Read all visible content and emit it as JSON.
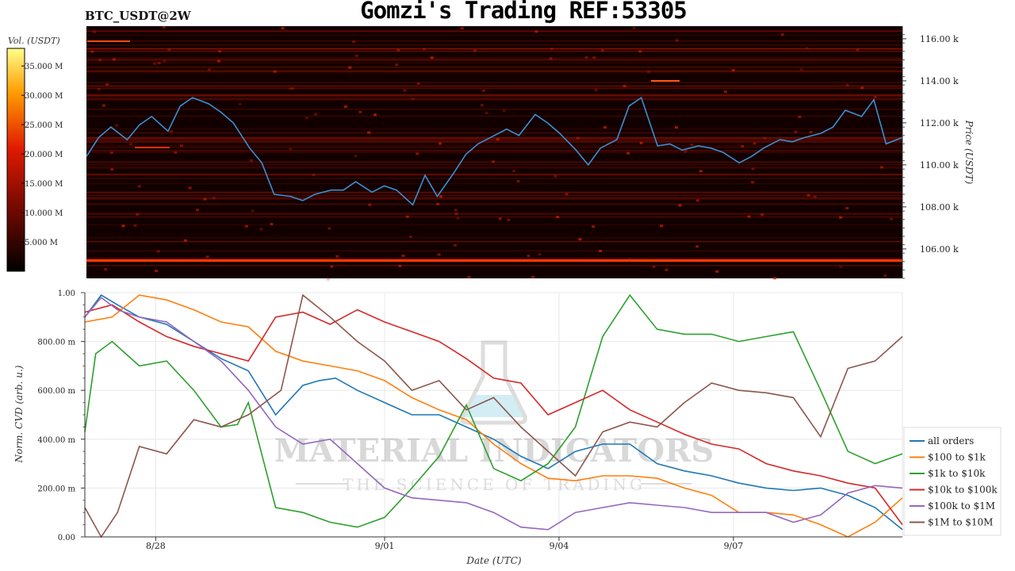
{
  "header": {
    "title": "Gomzi's Trading REF:53305",
    "pair": "BTC_USDT@2W"
  },
  "watermark": {
    "line1": "MATERIAL INDICATORS",
    "line2": "THE SCIENCE OF TRADING"
  },
  "chart_data": [
    {
      "type": "heatmap",
      "description_source": "order book liquidity heatmap with price line",
      "colorbar": {
        "label": "Vol. (USDT)",
        "ticks": [
          "5.000 M",
          "10.000 M",
          "15.000 M",
          "20.000 M",
          "25.000 M",
          "30.000 M",
          "35.000 M"
        ],
        "tick_values": [
          5,
          10,
          15,
          20,
          25,
          30,
          35
        ],
        "range": [
          0,
          38
        ]
      },
      "ylabel": "Price (USDT)",
      "ylim": [
        104.6,
        116.6
      ],
      "yticks": [
        "106.00 k",
        "108.00 k",
        "110.00 k",
        "112.00 k",
        "114.00 k",
        "116.00 k"
      ],
      "ytick_values": [
        106,
        108,
        110,
        112,
        114,
        116
      ],
      "price_series": {
        "color": "#3b8fd0",
        "x": [
          0,
          0.3,
          0.6,
          1,
          1.3,
          1.6,
          2,
          2.3,
          2.6,
          3,
          3.3,
          3.6,
          4,
          4.3,
          4.6,
          5,
          5.3,
          5.6,
          6,
          6.3,
          6.6,
          7,
          7.3,
          7.6,
          8,
          8.3,
          8.6,
          9,
          9.3,
          9.6,
          10,
          10.3,
          10.6,
          11,
          11.3,
          11.6,
          12,
          12.3,
          12.6,
          13,
          13.3,
          13.6,
          14,
          14.3,
          14.6,
          15
        ],
        "y": [
          110.4,
          111.3,
          111.8,
          111.2,
          111.9,
          112.3,
          111.6,
          112.8,
          113.2,
          112.9,
          112.5,
          112.0,
          110.8,
          110.1,
          108.6,
          108.5,
          108.3,
          108.6,
          108.8,
          108.8,
          109.2,
          108.7,
          109.0,
          108.8,
          108.1,
          109.5,
          108.5,
          109.6,
          110.5,
          111.0,
          111.4,
          111.7,
          111.4,
          112.4,
          112.0,
          111.5,
          110.7,
          110.0,
          110.8,
          111.2,
          112.8,
          113.2,
          110.9,
          111.0,
          110.7,
          110.9
        ]
      },
      "price_series_note": "",
      "price_series_extra": {
        "x": [
          15.3,
          15.6,
          16,
          16.3,
          16.6,
          17,
          17.3,
          17.6,
          18,
          18.3,
          18.6,
          19,
          19.3,
          19.6,
          20
        ],
        "y": [
          110.8,
          110.6,
          110.1,
          110.4,
          110.8,
          111.2,
          111.1,
          111.3,
          111.5,
          111.8,
          112.6,
          112.3,
          113.1,
          111.0,
          111.3
        ]
      }
    },
    {
      "type": "line",
      "xlabel": "Date (UTC)",
      "ylabel": "Norm. CVD (arb. u.)",
      "ylim": [
        0,
        1
      ],
      "yticks": [
        "0.00",
        "200.00 m",
        "400.00 m",
        "600.00 m",
        "800.00 m",
        "1.00"
      ],
      "ytick_values": [
        0,
        0.2,
        0.4,
        0.6,
        0.8,
        1.0
      ],
      "xticks": [
        "8/28",
        "9/01",
        "9/04",
        "9/07"
      ],
      "xtick_values": [
        1.3,
        5.5,
        8.7,
        11.9
      ],
      "xlim": [
        0,
        15
      ],
      "legend_position": "right",
      "series": [
        {
          "name": "all orders",
          "color": "#1f77b4",
          "x": [
            0,
            0.3,
            0.6,
            1,
            1.5,
            2,
            2.5,
            3,
            3.5,
            4,
            4.3,
            4.6,
            5,
            5.5,
            6,
            6.5,
            7,
            7.5,
            8,
            8.5,
            9,
            9.5,
            10,
            10.5,
            11,
            11.5,
            12,
            12.5,
            13,
            13.5,
            14,
            14.5,
            15
          ],
          "y": [
            0.9,
            0.99,
            0.95,
            0.9,
            0.87,
            0.8,
            0.73,
            0.68,
            0.5,
            0.62,
            0.64,
            0.65,
            0.6,
            0.55,
            0.5,
            0.5,
            0.45,
            0.4,
            0.33,
            0.28,
            0.35,
            0.38,
            0.38,
            0.3,
            0.27,
            0.25,
            0.22,
            0.2,
            0.19,
            0.2,
            0.17,
            0.12,
            0.03
          ]
        },
        {
          "name": "$100 to $1k",
          "color": "#ff7f0e",
          "x": [
            0,
            0.5,
            1,
            1.5,
            2,
            2.5,
            3,
            3.5,
            4,
            4.5,
            5,
            5.5,
            6,
            6.5,
            7,
            7.5,
            8,
            8.5,
            9,
            9.5,
            10,
            10.5,
            11,
            11.5,
            12,
            12.5,
            13,
            13.5,
            14,
            14.5,
            15
          ],
          "y": [
            0.88,
            0.9,
            0.99,
            0.97,
            0.93,
            0.88,
            0.86,
            0.76,
            0.72,
            0.7,
            0.68,
            0.64,
            0.57,
            0.52,
            0.48,
            0.38,
            0.3,
            0.24,
            0.23,
            0.25,
            0.25,
            0.24,
            0.2,
            0.17,
            0.1,
            0.1,
            0.09,
            0.05,
            0.0,
            0.06,
            0.16
          ]
        },
        {
          "name": "$1k to $10k",
          "color": "#2ca02c",
          "x": [
            0,
            0.2,
            0.5,
            1,
            1.5,
            2,
            2.5,
            2.8,
            3,
            3.5,
            4,
            4.5,
            5,
            5.5,
            6,
            6.5,
            7,
            7.5,
            8,
            8.5,
            9,
            9.5,
            10,
            10.5,
            11,
            11.5,
            12,
            12.5,
            13,
            13.5,
            14,
            14.5,
            15
          ],
          "y": [
            0.43,
            0.75,
            0.8,
            0.7,
            0.72,
            0.6,
            0.45,
            0.46,
            0.55,
            0.12,
            0.1,
            0.06,
            0.04,
            0.08,
            0.2,
            0.33,
            0.54,
            0.28,
            0.23,
            0.3,
            0.45,
            0.82,
            0.99,
            0.85,
            0.83,
            0.83,
            0.8,
            0.82,
            0.84,
            0.6,
            0.35,
            0.3,
            0.34
          ]
        },
        {
          "name": "$10k to $100k",
          "color": "#d62728",
          "x": [
            0,
            0.5,
            1,
            1.5,
            2,
            2.5,
            3,
            3.5,
            4,
            4.5,
            5,
            5.5,
            6,
            6.5,
            7,
            7.5,
            8,
            8.5,
            9,
            9.5,
            10,
            10.5,
            11,
            11.5,
            12,
            12.5,
            13,
            13.5,
            14,
            14.5,
            15
          ],
          "y": [
            0.92,
            0.95,
            0.88,
            0.82,
            0.78,
            0.75,
            0.72,
            0.9,
            0.92,
            0.87,
            0.93,
            0.88,
            0.84,
            0.8,
            0.73,
            0.65,
            0.63,
            0.5,
            0.55,
            0.6,
            0.52,
            0.47,
            0.42,
            0.38,
            0.36,
            0.3,
            0.27,
            0.25,
            0.22,
            0.2,
            0.05
          ]
        },
        {
          "name": "$100k to $1M",
          "color": "#9467bd",
          "x": [
            0,
            0.3,
            0.6,
            1,
            1.5,
            2,
            2.5,
            3,
            3.5,
            4,
            4.5,
            5,
            5.5,
            6,
            6.5,
            7,
            7.5,
            8,
            8.5,
            9,
            9.5,
            10,
            10.5,
            11,
            11.5,
            12,
            12.5,
            13,
            13.5,
            14,
            14.5,
            15
          ],
          "y": [
            0.9,
            0.98,
            0.93,
            0.9,
            0.88,
            0.8,
            0.72,
            0.6,
            0.45,
            0.38,
            0.4,
            0.3,
            0.2,
            0.16,
            0.15,
            0.14,
            0.1,
            0.04,
            0.03,
            0.1,
            0.12,
            0.14,
            0.13,
            0.12,
            0.1,
            0.1,
            0.1,
            0.06,
            0.09,
            0.18,
            0.21,
            0.2
          ]
        },
        {
          "name": "$1M to $10M",
          "color": "#8c564b",
          "x": [
            0,
            0.3,
            0.6,
            1,
            1.5,
            2,
            2.5,
            3,
            3.3,
            3.6,
            4,
            4.5,
            5,
            5.5,
            6,
            6.5,
            7,
            7.5,
            8,
            8.5,
            9,
            9.5,
            10,
            10.5,
            11,
            11.5,
            12,
            12.5,
            13,
            13.5,
            14,
            14.5,
            15
          ],
          "y": [
            0.12,
            0.0,
            0.1,
            0.37,
            0.34,
            0.48,
            0.45,
            0.5,
            0.55,
            0.6,
            0.99,
            0.9,
            0.8,
            0.72,
            0.6,
            0.64,
            0.52,
            0.57,
            0.45,
            0.35,
            0.25,
            0.43,
            0.47,
            0.45,
            0.55,
            0.63,
            0.6,
            0.59,
            0.57,
            0.41,
            0.69,
            0.72,
            0.82
          ]
        }
      ]
    }
  ]
}
